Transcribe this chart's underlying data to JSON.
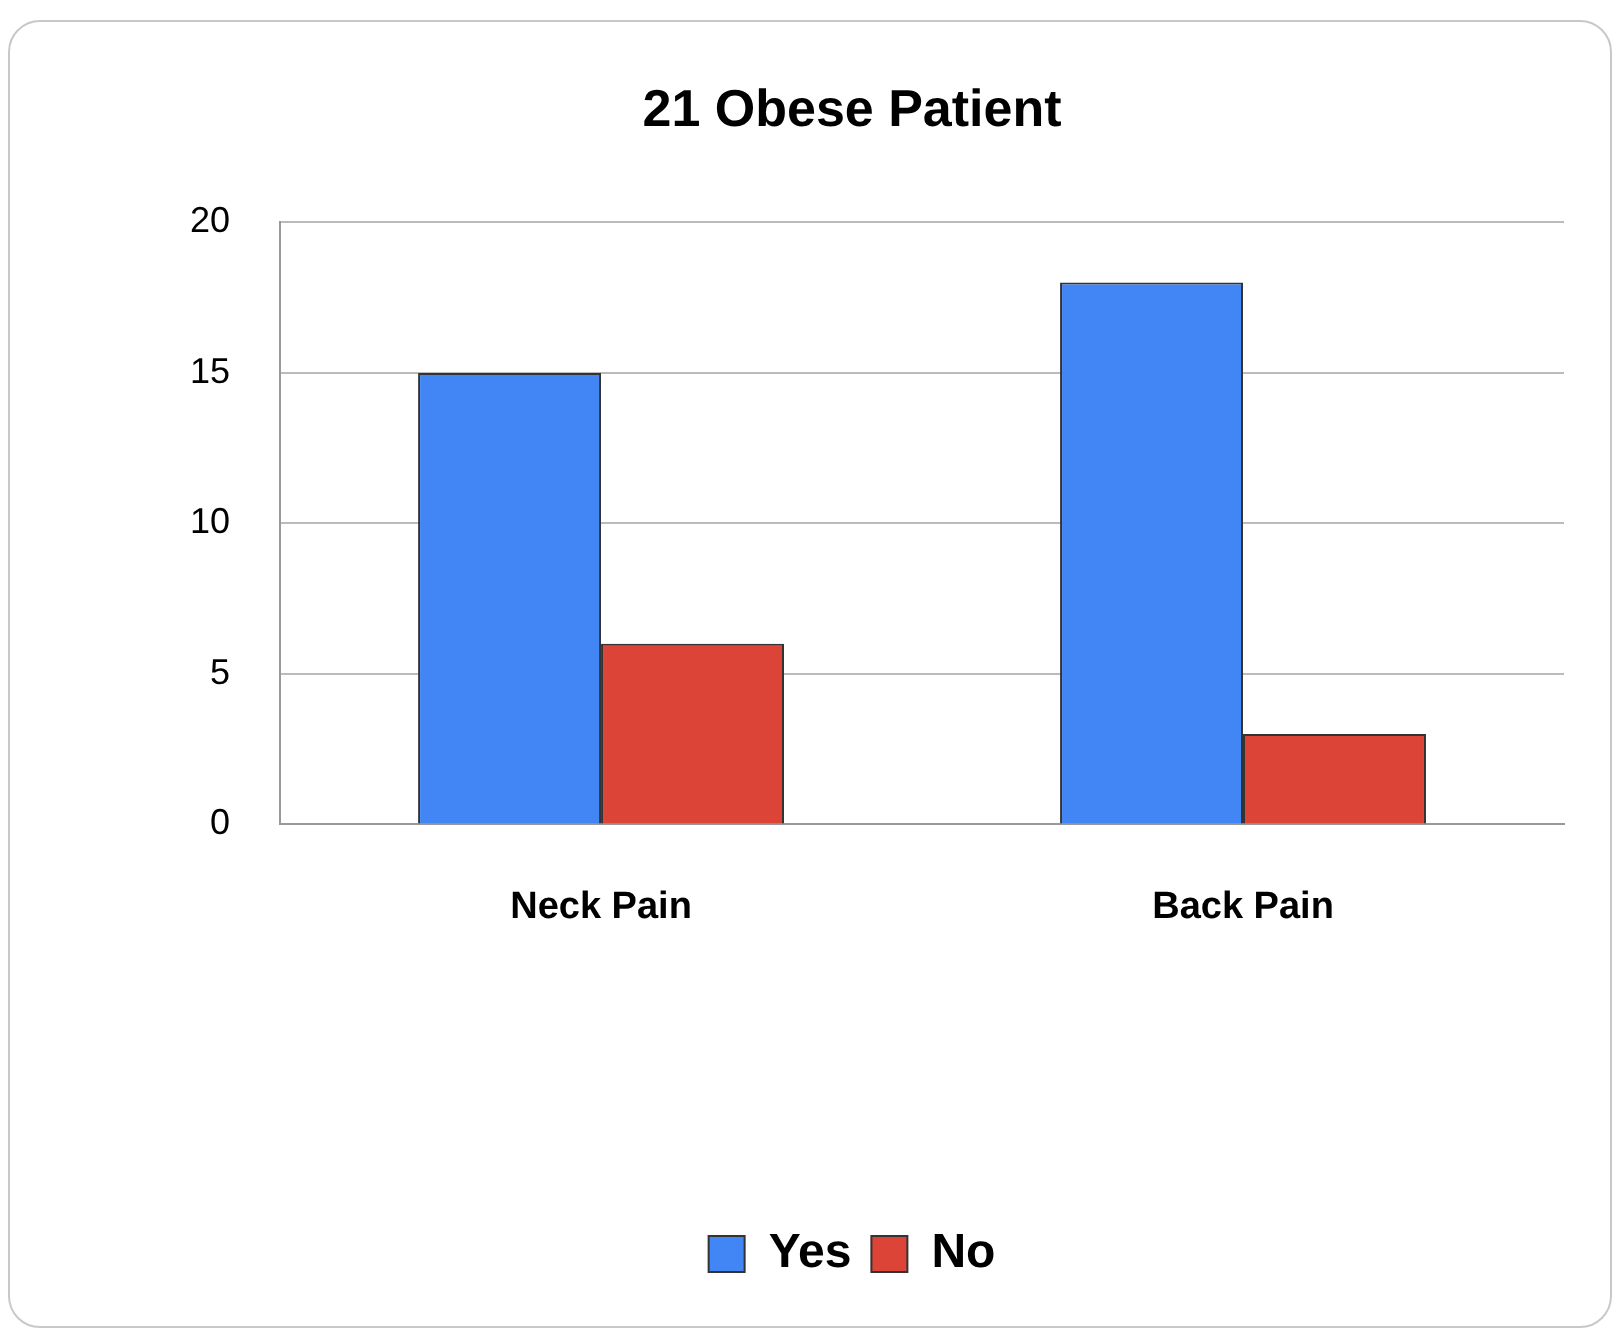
{
  "chart_data": {
    "type": "bar",
    "title": "21 Obese Patient",
    "categories": [
      "Neck Pain",
      "Back Pain"
    ],
    "series": [
      {
        "name": "Yes",
        "color": "#4285f4",
        "values": [
          15,
          18
        ]
      },
      {
        "name": "No",
        "color": "#db4437",
        "values": [
          6,
          3
        ]
      }
    ],
    "ylim": [
      0,
      20
    ],
    "yticks": [
      0,
      5,
      10,
      15,
      20
    ],
    "grid": "y",
    "legend": "bottom"
  }
}
